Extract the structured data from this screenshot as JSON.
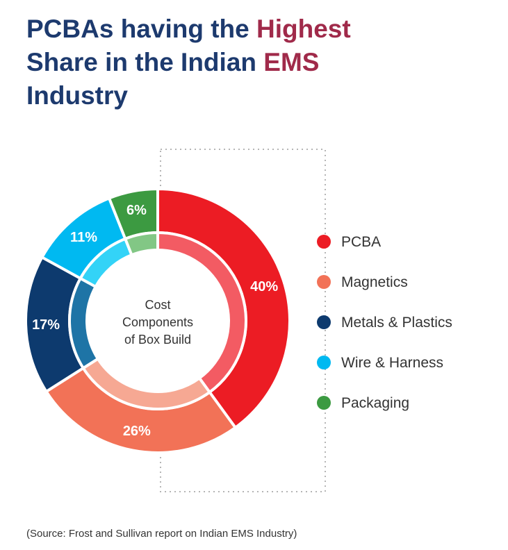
{
  "title": {
    "line1": "PCBAs having the Highest",
    "line2": "Share in the Indian EMS",
    "line3": "Industry"
  },
  "source": "(Source: Frost and Sullivan report on Indian EMS Industry)",
  "chart_data": {
    "type": "pie",
    "subtype": "donut",
    "center_label": [
      "Cost",
      "Components",
      "of Box Build"
    ],
    "legend_position": "right",
    "unit": "%",
    "slices": [
      {
        "name": "PCBA",
        "value": 40,
        "label": "40%",
        "color": "#ec1c24",
        "inner_color": "#f35b63"
      },
      {
        "name": "Magnetics",
        "value": 26,
        "label": "26%",
        "color": "#f27257",
        "inner_color": "#f6a893"
      },
      {
        "name": "Metals & Plastics",
        "value": 17,
        "label": "17%",
        "color": "#0d3a6e",
        "inner_color": "#1e74a6"
      },
      {
        "name": "Wire & Harness",
        "value": 11,
        "label": "11%",
        "color": "#00b9f1",
        "inner_color": "#33d3f7"
      },
      {
        "name": "Packaging",
        "value": 6,
        "label": "6%",
        "color": "#3c9a41",
        "inner_color": "#82c785"
      }
    ]
  }
}
